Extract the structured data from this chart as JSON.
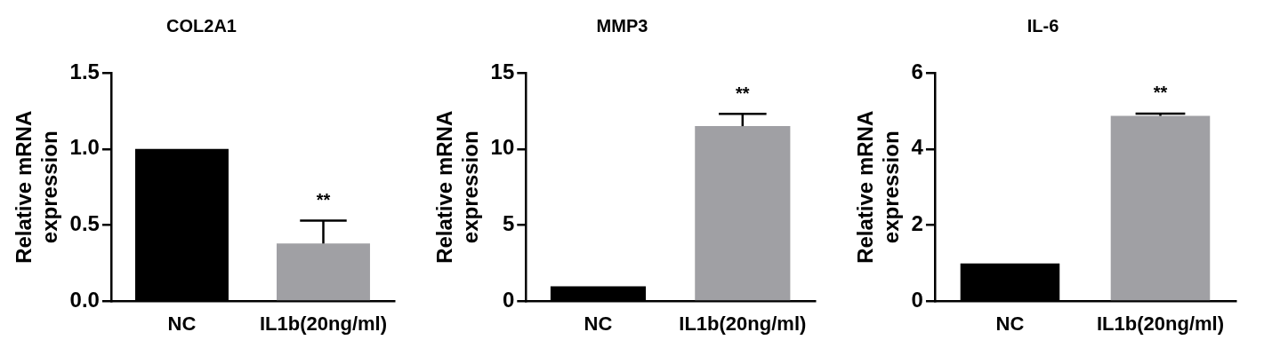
{
  "chart_data": [
    {
      "type": "bar",
      "title": "COL2A1",
      "ylabel": "Relative mRNA expression",
      "categories": [
        "NC",
        "IL1b(20ng/ml)"
      ],
      "values": [
        1.0,
        0.38
      ],
      "colors": [
        "#000000",
        "#a0a0a4"
      ],
      "errors": [
        null,
        [
          0.38,
          0.53
        ]
      ],
      "ylim": [
        0,
        1.5
      ],
      "yticks": [
        {
          "value": 0,
          "label": "0.0"
        },
        0.5,
        {
          "value": 1,
          "label": "1.0"
        },
        1.5
      ],
      "grid": false,
      "legend": false,
      "annotations": [
        "**"
      ]
    },
    {
      "type": "bar",
      "title": "MMP3",
      "ylabel": "Relative mRNA expression",
      "categories": [
        "NC",
        "IL1b(20ng/ml)"
      ],
      "values": [
        1.0,
        11.5
      ],
      "colors": [
        "#000000",
        "#a0a0a4"
      ],
      "errors": [
        null,
        [
          11.5,
          12.3
        ]
      ],
      "ylim": [
        0,
        15
      ],
      "yticks": [
        0,
        5,
        10,
        15
      ],
      "grid": false,
      "legend": false,
      "annotations": [
        "**"
      ]
    },
    {
      "type": "bar",
      "title": "IL-6",
      "ylabel": "Relative mRNA expression",
      "categories": [
        "NC",
        "IL1b(20ng/ml)"
      ],
      "values": [
        1.0,
        4.87
      ],
      "colors": [
        "#000000",
        "#a0a0a4"
      ],
      "errors": [
        null,
        [
          4.87,
          4.93
        ]
      ],
      "ylim": [
        0,
        6
      ],
      "yticks": [
        0,
        2,
        4,
        6
      ],
      "grid": false,
      "legend": false,
      "annotations": [
        "**"
      ]
    }
  ]
}
